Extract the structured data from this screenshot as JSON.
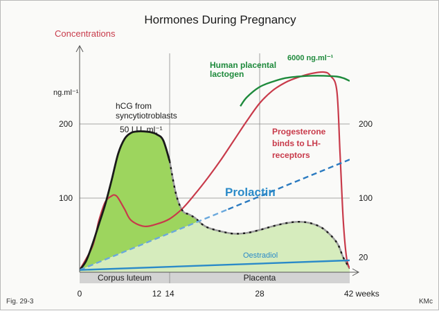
{
  "chart_data": {
    "type": "line",
    "title": "Hormones During Pregnancy",
    "ylabel": "Concentrations",
    "yunit": "ng.ml⁻¹",
    "xlim": [
      0,
      42
    ],
    "ylim": [
      0,
      250
    ],
    "x_ticks": [
      {
        "value": 0,
        "label": "0"
      },
      {
        "value": 12,
        "label": "12"
      },
      {
        "value": 14,
        "label": "14"
      },
      {
        "value": 28,
        "label": "28"
      },
      {
        "value": 42,
        "label": "42 weeks"
      }
    ],
    "y_ticks_left": [
      {
        "value": 100,
        "label": "100"
      },
      {
        "value": 200,
        "label": "200"
      }
    ],
    "y_ticks_right": [
      {
        "value": 20,
        "label": "20"
      },
      {
        "value": 100,
        "label": "100"
      },
      {
        "value": 200,
        "label": "200"
      }
    ],
    "grid": true,
    "periods": [
      {
        "label": "Corpus luteum",
        "from": 0,
        "to": 14
      },
      {
        "label": "Placenta",
        "from": 14,
        "to": 42
      }
    ],
    "series": [
      {
        "name": "hCG from syncytiotroblasts",
        "peak_label": "50 I.U. ml⁻¹",
        "color": "#1a1a1a",
        "x": [
          0,
          1,
          2,
          3,
          4,
          5,
          6,
          7,
          8,
          9,
          10,
          11,
          12,
          13,
          14,
          15,
          16,
          17,
          18,
          19,
          20,
          22,
          24,
          26,
          28,
          30,
          32,
          34,
          36,
          38,
          40,
          41,
          42
        ],
        "y": [
          3,
          15,
          38,
          65,
          92,
          125,
          160,
          180,
          188,
          190,
          190,
          189,
          186,
          178,
          150,
          105,
          83,
          78,
          73,
          65,
          60,
          55,
          52,
          53,
          57,
          62,
          66,
          68,
          66,
          58,
          40,
          20,
          5
        ]
      },
      {
        "name": "Progesterone binds to LH-receptors",
        "color": "#c83a4a",
        "x": [
          0,
          2,
          3,
          4,
          5,
          5.5,
          6,
          7,
          8,
          10,
          12,
          14,
          16,
          18,
          20,
          22,
          24,
          26,
          28,
          30,
          32,
          34,
          36,
          38,
          39,
          40,
          40.5,
          41,
          41.5,
          42
        ],
        "y": [
          3,
          35,
          70,
          95,
          103,
          104,
          100,
          85,
          70,
          62,
          65,
          72,
          86,
          106,
          128,
          152,
          178,
          204,
          228,
          245,
          256,
          263,
          268,
          270,
          265,
          245,
          160,
          70,
          20,
          5
        ]
      },
      {
        "name": "Human placental lactogen",
        "peak_label": "6000 ng.ml⁻¹",
        "color": "#1e8a3c",
        "x": [
          25,
          26,
          28,
          30,
          32,
          34,
          36,
          38,
          40,
          41,
          42
        ],
        "y": [
          224,
          236,
          250,
          257,
          262,
          264,
          265,
          265,
          264,
          262,
          258
        ]
      },
      {
        "name": "Prolactin",
        "color": "#6aa8dc",
        "x": [
          0,
          42
        ],
        "y": [
          3,
          152
        ]
      },
      {
        "name": "Oestradiol",
        "color": "#2a8ac8",
        "x": [
          0,
          42
        ],
        "y": [
          3,
          16
        ]
      }
    ]
  },
  "footer": {
    "figure_ref": "Fig. 29-3",
    "credit": "KMc"
  }
}
